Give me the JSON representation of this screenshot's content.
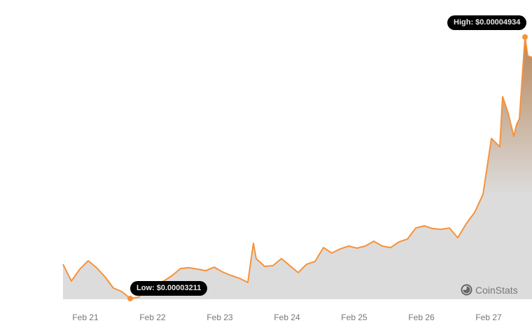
{
  "chart_data": {
    "type": "area",
    "xlabel": "",
    "ylabel": "",
    "x_ticks": [
      "Feb 21",
      "Feb 22",
      "Feb 23",
      "Feb 24",
      "Feb 25",
      "Feb 26",
      "Feb 27"
    ],
    "grid": false,
    "colors": {
      "line": "#f7923a",
      "fill_top": "#b7865a",
      "fill_bottom": "#dcdcdc"
    },
    "points": [
      [
        "Feb 20 16:00",
        3.437e-05
      ],
      [
        "Feb 20 19:00",
        3.326e-05
      ],
      [
        "Feb 20 22:00",
        3.405e-05
      ],
      [
        "Feb 21 01:00",
        3.46e-05
      ],
      [
        "Feb 21 04:00",
        3.414e-05
      ],
      [
        "Feb 21 07:00",
        3.354e-05
      ],
      [
        "Feb 21 10:00",
        3.28e-05
      ],
      [
        "Feb 21 13:00",
        3.257e-05
      ],
      [
        "Feb 21 16:00",
        3.211e-05
      ],
      [
        "Feb 21 19:00",
        3.22e-05
      ],
      [
        "Feb 21 22:00",
        3.285e-05
      ],
      [
        "Feb 22 01:00",
        3.308e-05
      ],
      [
        "Feb 22 04:00",
        3.326e-05
      ],
      [
        "Feb 22 07:00",
        3.363e-05
      ],
      [
        "Feb 22 10:00",
        3.409e-05
      ],
      [
        "Feb 22 13:00",
        3.414e-05
      ],
      [
        "Feb 22 16:00",
        3.405e-05
      ],
      [
        "Feb 22 19:00",
        3.395e-05
      ],
      [
        "Feb 22 22:00",
        3.418e-05
      ],
      [
        "Feb 23 01:00",
        3.386e-05
      ],
      [
        "Feb 23 04:00",
        3.363e-05
      ],
      [
        "Feb 23 07:00",
        3.345e-05
      ],
      [
        "Feb 23 10:00",
        3.317e-05
      ],
      [
        "Feb 23 12:00",
        3.575e-05
      ],
      [
        "Feb 23 13:00",
        3.474e-05
      ],
      [
        "Feb 23 16:00",
        3.423e-05
      ],
      [
        "Feb 23 19:00",
        3.428e-05
      ],
      [
        "Feb 23 22:00",
        3.474e-05
      ],
      [
        "Feb 24 01:00",
        3.428e-05
      ],
      [
        "Feb 24 04:00",
        3.382e-05
      ],
      [
        "Feb 24 07:00",
        3.437e-05
      ],
      [
        "Feb 24 10:00",
        3.455e-05
      ],
      [
        "Feb 24 13:00",
        3.547e-05
      ],
      [
        "Feb 24 16:00",
        3.511e-05
      ],
      [
        "Feb 24 19:00",
        3.538e-05
      ],
      [
        "Feb 24 22:00",
        3.557e-05
      ],
      [
        "Feb 25 01:00",
        3.543e-05
      ],
      [
        "Feb 25 04:00",
        3.557e-05
      ],
      [
        "Feb 25 07:00",
        3.589e-05
      ],
      [
        "Feb 25 10:00",
        3.557e-05
      ],
      [
        "Feb 25 13:00",
        3.547e-05
      ],
      [
        "Feb 25 16:00",
        3.584e-05
      ],
      [
        "Feb 25 19:00",
        3.603e-05
      ],
      [
        "Feb 25 22:00",
        3.676e-05
      ],
      [
        "Feb 26 01:00",
        3.69e-05
      ],
      [
        "Feb 26 04:00",
        3.672e-05
      ],
      [
        "Feb 26 07:00",
        3.667e-05
      ],
      [
        "Feb 26 10:00",
        3.676e-05
      ],
      [
        "Feb 26 13:00",
        3.612e-05
      ],
      [
        "Feb 26 16:00",
        3.704e-05
      ],
      [
        "Feb 26 19:00",
        3.778e-05
      ],
      [
        "Feb 26 22:00",
        3.897e-05
      ],
      [
        "Feb 27 01:00",
        4.266e-05
      ],
      [
        "Feb 27 04:00",
        4.211e-05
      ],
      [
        "Feb 27 05:00",
        4.542e-05
      ],
      [
        "Feb 27 07:00",
        4.432e-05
      ],
      [
        "Feb 27 09:00",
        4.28e-05
      ],
      [
        "Feb 27 10:00",
        4.358e-05
      ],
      [
        "Feb 27 11:00",
        4.395e-05
      ],
      [
        "Feb 27 13:00",
        4.934e-05
      ],
      [
        "Feb 27 14:00",
        4.81e-05
      ],
      [
        "Feb 27 15:30",
        4.8e-05
      ]
    ],
    "annotations": {
      "high": {
        "label": "High: $0.00004934",
        "value": 4.934e-05,
        "x": "Feb 27 13:00"
      },
      "low": {
        "label": "Low: $0.00003211",
        "value": 3.211e-05,
        "x": "Feb 21 16:00"
      }
    }
  },
  "brand": {
    "name": "CoinStats",
    "icon": "pie-chart-logo-icon"
  }
}
